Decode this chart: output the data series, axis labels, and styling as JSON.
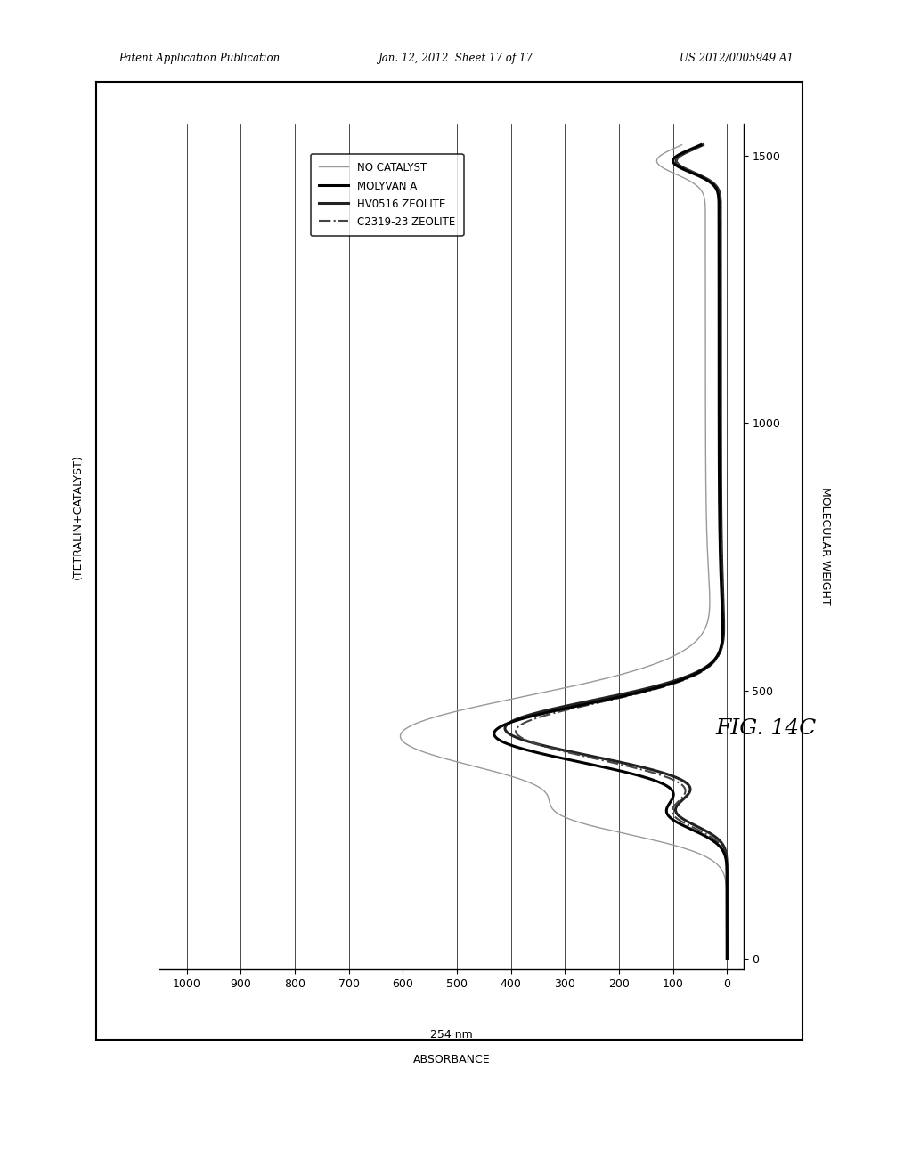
{
  "patent_header_left": "Patent Application Publication",
  "patent_header_mid": "Jan. 12, 2012  Sheet 17 of 17",
  "patent_header_right": "US 2012/0005949 A1",
  "xlabel_line1": "254 nm",
  "xlabel_line2": "ABSORBANCE",
  "ylabel": "MOLECULAR WEIGHT",
  "top_label": "(TETRALIN+CATALYST)",
  "x_ticks": [
    1000,
    900,
    800,
    700,
    600,
    500,
    400,
    300,
    200,
    100,
    0
  ],
  "y_ticks": [
    0,
    500,
    1000,
    1500
  ],
  "xlim": [
    1050,
    -30
  ],
  "ylim": [
    -20,
    1560
  ],
  "legend": [
    {
      "label": "NO CATALYST",
      "style": "solid",
      "color": "#999999",
      "lw": 1.0
    },
    {
      "label": "MOLYVAN A",
      "style": "solid",
      "color": "#000000",
      "lw": 2.2
    },
    {
      "label": "HV0516 ZEOLITE",
      "style": "solid",
      "color": "#222222",
      "lw": 2.2
    },
    {
      "label": "C2319-23 ZEOLITE",
      "style": "dashdot",
      "color": "#444444",
      "lw": 1.5
    }
  ],
  "fig_label": "FIG. 14C",
  "background_color": "#ffffff"
}
